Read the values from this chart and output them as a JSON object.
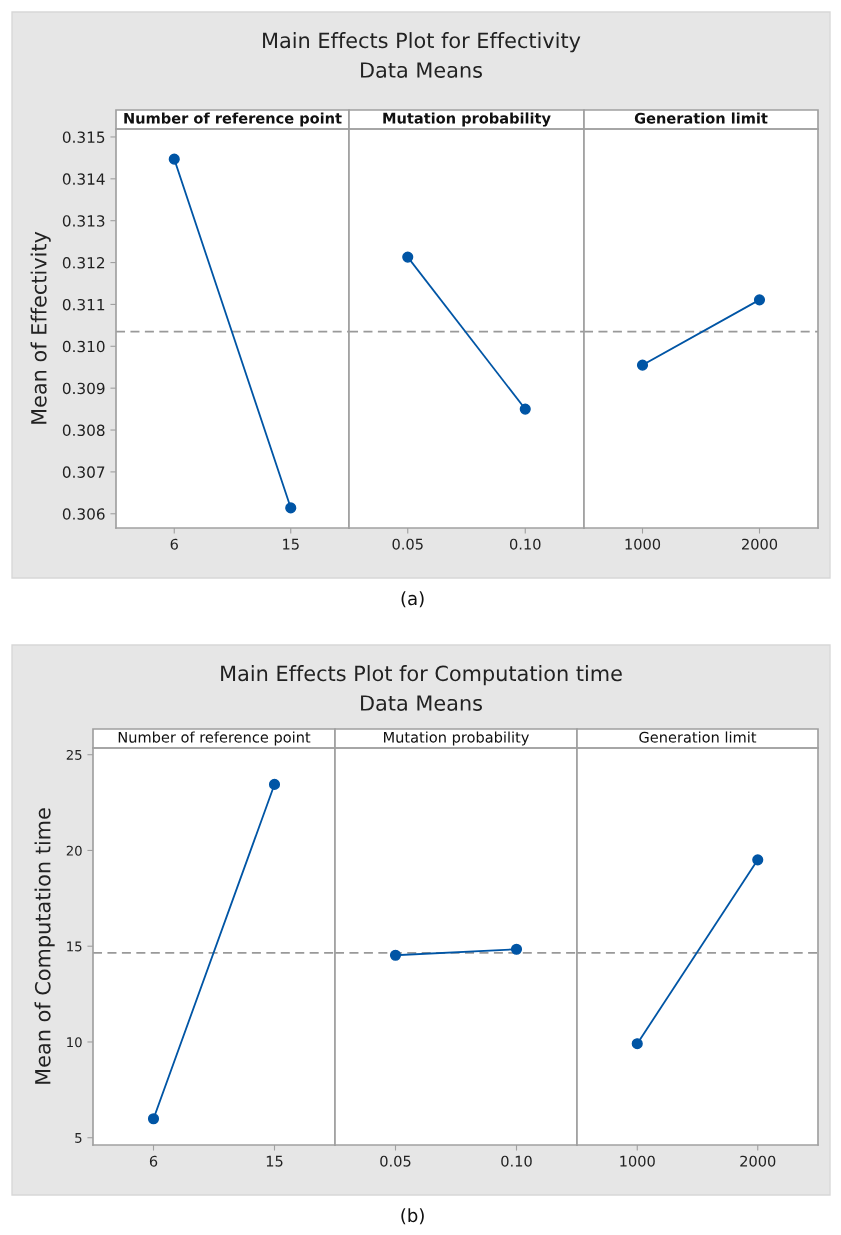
{
  "chart_data": [
    {
      "type": "line",
      "title": "Main Effects Plot for Effectivity\nData Means",
      "ylabel": "Mean of Effectivity",
      "xlabel": "Number of reference point",
      "categories": [
        "6",
        "15"
      ],
      "series": [
        {
          "color": "#0055a5",
          "values": [
            0.31447,
            0.30614
          ]
        }
      ],
      "marker": "circle",
      "ylim": [
        0.30566,
        0.31519
      ],
      "yticks": [
        0.306,
        0.307,
        0.308,
        0.309,
        {
          "value": 0.31,
          "label": "0.310"
        },
        0.311,
        0.312,
        0.313,
        0.314,
        0.315
      ],
      "ref_lines": [
        {
          "axis": "y",
          "value": 0.31035,
          "color": "#999999",
          "line_style": "dashed"
        }
      ],
      "annotations": [
        "(a)"
      ]
    },
    {
      "type": "line",
      "xlabel": "Mutation probability",
      "categories": [
        "0.05",
        "0.10"
      ],
      "series": [
        {
          "color": "#0055a5",
          "values": [
            0.31213,
            0.3085
          ]
        }
      ],
      "marker": "circle",
      "ylim": [
        0.30566,
        0.31519
      ],
      "tick_labels": "x",
      "ref_lines": [
        {
          "axis": "y",
          "value": 0.31035,
          "color": "#999999",
          "line_style": "dashed"
        }
      ]
    },
    {
      "type": "line",
      "xlabel": "Generation limit",
      "categories": [
        "1000",
        "2000"
      ],
      "series": [
        {
          "color": "#0055a5",
          "values": [
            0.30955,
            0.31111
          ]
        }
      ],
      "marker": "circle",
      "ylim": [
        0.30566,
        0.31519
      ],
      "tick_labels": "x",
      "ref_lines": [
        {
          "axis": "y",
          "value": 0.31035,
          "color": "#999999",
          "line_style": "dashed"
        }
      ]
    },
    {
      "type": "line",
      "title": "Main Effects Plot for Computation time\nData Means",
      "ylabel": "Mean of Computation time",
      "xlabel": "Number of reference point",
      "categories": [
        "6",
        "15"
      ],
      "series": [
        {
          "color": "#0055a5",
          "values": [
            5.99,
            23.45
          ]
        }
      ],
      "marker": "circle",
      "ylim": [
        4.62,
        25.35
      ],
      "yticks": [
        5,
        10,
        15,
        20,
        25
      ],
      "ref_lines": [
        {
          "axis": "y",
          "value": 14.65,
          "color": "#999999",
          "line_style": "dashed"
        }
      ],
      "annotations": [
        "(b)"
      ]
    },
    {
      "type": "line",
      "xlabel": "Mutation probability",
      "categories": [
        "0.05",
        "0.10"
      ],
      "series": [
        {
          "color": "#0055a5",
          "values": [
            14.53,
            14.84
          ]
        }
      ],
      "marker": "circle",
      "ylim": [
        4.62,
        25.35
      ],
      "tick_labels": "x",
      "ref_lines": [
        {
          "axis": "y",
          "value": 14.65,
          "color": "#999999",
          "line_style": "dashed"
        }
      ]
    },
    {
      "type": "line",
      "xlabel": "Generation limit",
      "categories": [
        "1000",
        "2000"
      ],
      "series": [
        {
          "color": "#0055a5",
          "values": [
            9.91,
            19.51
          ]
        }
      ],
      "marker": "circle",
      "ylim": [
        4.62,
        25.35
      ],
      "tick_labels": "x",
      "ref_lines": [
        {
          "axis": "y",
          "value": 14.65,
          "color": "#999999",
          "line_style": "dashed"
        }
      ]
    }
  ]
}
